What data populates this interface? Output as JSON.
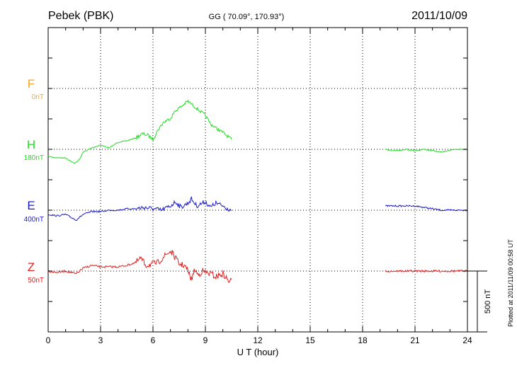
{
  "header": {
    "station": "Pebek (PBK)",
    "coords": "GG ( 70.09°, 170.93°)",
    "date": "2011/10/09"
  },
  "footer": {
    "plotted": "Plotted at 2011/11/09 00:58 UT"
  },
  "colors": {
    "F": "#f5a623",
    "H": "#22dd22",
    "E": "#1a1acc",
    "Z": "#e02020",
    "axis": "#000000"
  },
  "chart_data": {
    "type": "line",
    "xlabel": "U T (hour)",
    "xlim": [
      0,
      24
    ],
    "xticks": [
      0,
      3,
      6,
      9,
      12,
      15,
      18,
      21,
      24
    ],
    "scale_bar_label": "500 nT",
    "scale_bar_nT": 500,
    "series": [
      {
        "name": "F",
        "offset_label": "0nT",
        "points": []
      },
      {
        "name": "H",
        "offset_label": "180nT",
        "points": [
          [
            0,
            10
          ],
          [
            0.5,
            12
          ],
          [
            1.0,
            12
          ],
          [
            1.5,
            20
          ],
          [
            1.8,
            14
          ],
          [
            2.0,
            4
          ],
          [
            2.5,
            -2
          ],
          [
            3.0,
            -6
          ],
          [
            3.5,
            -2
          ],
          [
            4.0,
            -10
          ],
          [
            4.5,
            -12
          ],
          [
            5.0,
            -16
          ],
          [
            5.4,
            -22
          ],
          [
            5.7,
            -20
          ],
          [
            6.0,
            -14
          ],
          [
            6.3,
            -28
          ],
          [
            6.6,
            -38
          ],
          [
            7.0,
            -44
          ],
          [
            7.3,
            -55
          ],
          [
            7.6,
            -60
          ],
          [
            8.0,
            -68
          ],
          [
            8.3,
            -62
          ],
          [
            8.6,
            -56
          ],
          [
            9.0,
            -48
          ],
          [
            9.3,
            -36
          ],
          [
            9.6,
            -30
          ],
          [
            10.0,
            -24
          ],
          [
            10.3,
            -18
          ],
          [
            10.5,
            -14
          ],
          [
            19.3,
            0
          ],
          [
            19.8,
            2
          ],
          [
            20.5,
            0
          ],
          [
            21.0,
            2
          ],
          [
            21.5,
            0
          ],
          [
            22.0,
            2
          ],
          [
            22.5,
            4
          ],
          [
            23.0,
            1
          ],
          [
            23.5,
            0
          ],
          [
            24,
            0
          ]
        ]
      },
      {
        "name": "E",
        "offset_label": "400nT",
        "points": [
          [
            0,
            6
          ],
          [
            0.5,
            8
          ],
          [
            1.0,
            6
          ],
          [
            1.6,
            14
          ],
          [
            2.0,
            6
          ],
          [
            2.5,
            2
          ],
          [
            3.0,
            2
          ],
          [
            3.5,
            0
          ],
          [
            4.0,
            0
          ],
          [
            4.5,
            -2
          ],
          [
            5.0,
            -2
          ],
          [
            5.5,
            -4
          ],
          [
            6.0,
            -2
          ],
          [
            6.5,
            0
          ],
          [
            7.0,
            -6
          ],
          [
            7.3,
            -12
          ],
          [
            7.6,
            -4
          ],
          [
            8.0,
            -10
          ],
          [
            8.2,
            -16
          ],
          [
            8.5,
            -6
          ],
          [
            9.0,
            -12
          ],
          [
            9.3,
            -4
          ],
          [
            9.6,
            -10
          ],
          [
            10.0,
            -6
          ],
          [
            10.3,
            -2
          ],
          [
            10.5,
            0
          ],
          [
            19.3,
            -6
          ],
          [
            19.8,
            -6
          ],
          [
            20.5,
            -6
          ],
          [
            21.0,
            -6
          ],
          [
            21.5,
            -4
          ],
          [
            22.0,
            -2
          ],
          [
            22.5,
            0
          ],
          [
            23.0,
            0
          ],
          [
            23.5,
            0
          ],
          [
            24,
            0
          ]
        ]
      },
      {
        "name": "Z",
        "offset_label": "50nT",
        "points": [
          [
            0,
            0
          ],
          [
            0.5,
            2
          ],
          [
            1.0,
            0
          ],
          [
            1.6,
            4
          ],
          [
            2.0,
            -4
          ],
          [
            2.5,
            -8
          ],
          [
            3.0,
            -6
          ],
          [
            3.5,
            -6
          ],
          [
            4.0,
            -6
          ],
          [
            4.5,
            -8
          ],
          [
            5.0,
            -12
          ],
          [
            5.3,
            -18
          ],
          [
            5.6,
            -8
          ],
          [
            6.0,
            -10
          ],
          [
            6.3,
            -12
          ],
          [
            6.6,
            -20
          ],
          [
            7.0,
            -28
          ],
          [
            7.2,
            -22
          ],
          [
            7.5,
            -10
          ],
          [
            7.8,
            -8
          ],
          [
            8.0,
            0
          ],
          [
            8.2,
            12
          ],
          [
            8.4,
            -2
          ],
          [
            8.6,
            6
          ],
          [
            8.8,
            0
          ],
          [
            9.0,
            2
          ],
          [
            9.3,
            4
          ],
          [
            9.6,
            8
          ],
          [
            9.8,
            6
          ],
          [
            10.0,
            4
          ],
          [
            10.2,
            10
          ],
          [
            10.4,
            16
          ],
          [
            10.5,
            12
          ],
          [
            19.3,
            0
          ],
          [
            19.8,
            0
          ],
          [
            20.5,
            0
          ],
          [
            21.0,
            0
          ],
          [
            21.5,
            0
          ],
          [
            22.0,
            0
          ],
          [
            22.5,
            0
          ],
          [
            23.0,
            0
          ],
          [
            23.5,
            0
          ],
          [
            24,
            0
          ]
        ]
      }
    ]
  }
}
